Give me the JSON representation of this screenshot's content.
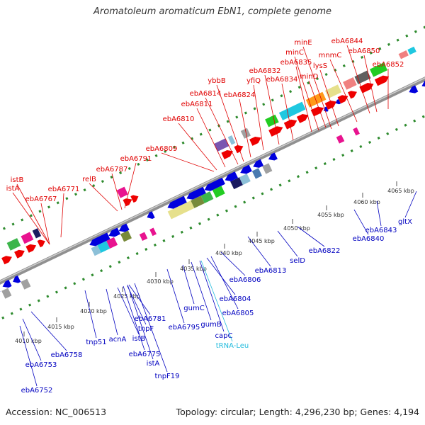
{
  "title": "Aromatoleum aromaticum EbN1, complete genome",
  "footer": {
    "accession": "Accession: NC_006513",
    "summary": "Topology: circular; Length: 4,296,230 bp; Genes: 4,194"
  },
  "colors": {
    "forward_label": "#e00000",
    "reverse_label": "#0000c0",
    "rna_label": "#22bbdd",
    "backbone": "#909090"
  },
  "ticks": [
    {
      "label": "4010 kbp"
    },
    {
      "label": "4015 kbp"
    },
    {
      "label": "4020 kbp"
    },
    {
      "label": "4025 kbp"
    },
    {
      "label": "4030 kbp"
    },
    {
      "label": "4035 kbp"
    },
    {
      "label": "4040 kbp"
    },
    {
      "label": "4045 kbp"
    },
    {
      "label": "4050 kbp"
    },
    {
      "label": "4055 kbp"
    },
    {
      "label": "4060 kbp"
    },
    {
      "label": "4065 kbp"
    }
  ],
  "forward_genes": [
    {
      "label": "istB"
    },
    {
      "label": "istA"
    },
    {
      "label": "ebA6767"
    },
    {
      "label": "ebA6771"
    },
    {
      "label": "relB"
    },
    {
      "label": "ebA6787"
    },
    {
      "label": "ebA6791"
    },
    {
      "label": "ebA6809"
    },
    {
      "label": "ebA6810"
    },
    {
      "label": "ebA6811"
    },
    {
      "label": "ebA6814"
    },
    {
      "label": "ybbB"
    },
    {
      "label": "ebA6824"
    },
    {
      "label": "yfiQ"
    },
    {
      "label": "ebA6832"
    },
    {
      "label": "ebA6834"
    },
    {
      "label": "ebA6835"
    },
    {
      "label": "minC"
    },
    {
      "label": "minE"
    },
    {
      "label": "lysS"
    },
    {
      "label": "minD"
    },
    {
      "label": "mnmC"
    },
    {
      "label": "ebA6844"
    },
    {
      "label": "ebA6850"
    },
    {
      "label": "ebA6852"
    }
  ],
  "reverse_genes": [
    {
      "label": "ebA6752"
    },
    {
      "label": "ebA6753"
    },
    {
      "label": "ebA6758"
    },
    {
      "label": "tnp51"
    },
    {
      "label": "acnA"
    },
    {
      "label": "istB"
    },
    {
      "label": "ebA6775"
    },
    {
      "label": "istA"
    },
    {
      "label": "tnpF19"
    },
    {
      "label": "tnpF"
    },
    {
      "label": "ebA6781"
    },
    {
      "label": "ebA6795"
    },
    {
      "label": "gumC"
    },
    {
      "label": "gumB"
    },
    {
      "label": "capC"
    },
    {
      "label": "tRNA-Leu"
    },
    {
      "label": "ebA6804"
    },
    {
      "label": "ebA6805"
    },
    {
      "label": "ebA6806"
    },
    {
      "label": "ebA6813"
    },
    {
      "label": "selD"
    },
    {
      "label": "ebA6822"
    },
    {
      "label": "ebA6840"
    },
    {
      "label": "ebA6843"
    },
    {
      "label": "gltX"
    }
  ]
}
